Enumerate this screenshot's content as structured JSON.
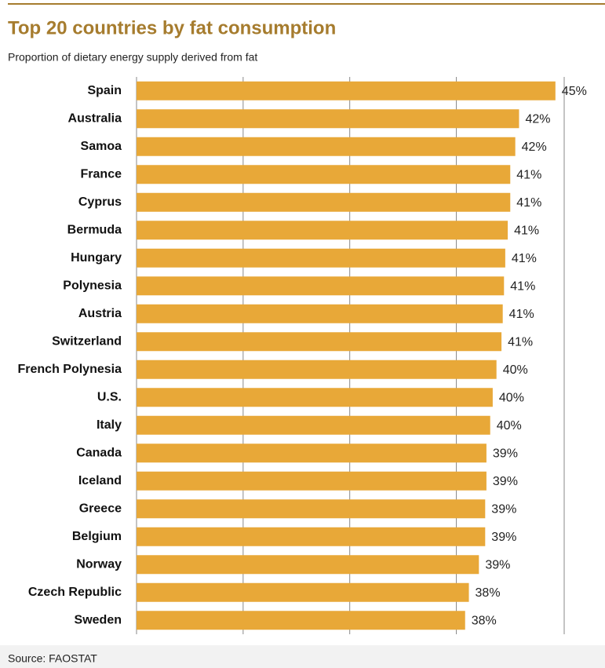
{
  "chart_data": {
    "type": "bar",
    "orientation": "horizontal",
    "title": "Top 20 countries by fat consumption",
    "subtitle": "Proportion of dietary energy supply derived from fat",
    "source": "Source: FAOSTAT",
    "categories": [
      "Spain",
      "Australia",
      "Samoa",
      "France",
      "Cyprus",
      "Bermuda",
      "Hungary",
      "Polynesia",
      "Austria",
      "Switzerland",
      "French Polynesia",
      "U.S.",
      "Italy",
      "Canada",
      "Iceland",
      "Greece",
      "Belgium",
      "Norway",
      "Czech Republic",
      "Sweden"
    ],
    "values": [
      44.9,
      42.0,
      41.7,
      41.3,
      41.3,
      41.1,
      40.9,
      40.8,
      40.7,
      40.6,
      40.2,
      39.9,
      39.7,
      39.4,
      39.4,
      39.3,
      39.3,
      38.8,
      38.0,
      37.7
    ],
    "value_labels": [
      "45%",
      "42%",
      "42%",
      "41%",
      "41%",
      "41%",
      "41%",
      "41%",
      "41%",
      "41%",
      "40%",
      "40%",
      "40%",
      "39%",
      "39%",
      "39%",
      "39%",
      "39%",
      "38%",
      "38%"
    ],
    "color": "#e8a838",
    "xlim": [
      11.5,
      45.6
    ],
    "xticks": [
      11.5,
      20,
      28.5,
      37,
      45.6
    ],
    "grid": true
  }
}
